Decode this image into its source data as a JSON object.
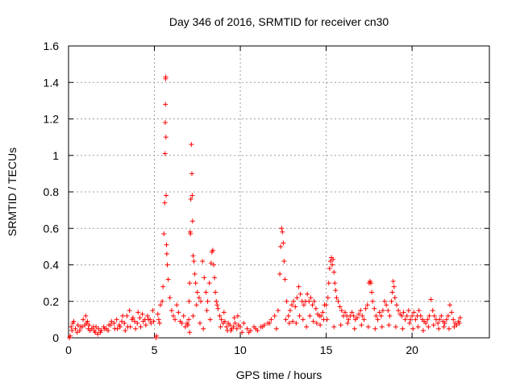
{
  "chart_data": {
    "type": "scatter",
    "title": "Day 346 of 2016, SRMTID for receiver cn30",
    "xlabel": "GPS time / hours",
    "ylabel": "SRMTID / TECUs",
    "xlim": [
      0,
      24.5
    ],
    "ylim": [
      0,
      1.6
    ],
    "xticks": [
      0,
      5,
      10,
      15,
      20
    ],
    "yticks": [
      0,
      0.2,
      0.4,
      0.6,
      0.8,
      1,
      1.2,
      1.4,
      1.6
    ],
    "xtick_labels": [
      "0",
      "5",
      "10",
      "15",
      "20"
    ],
    "ytick_labels": [
      "0",
      "0.2",
      "0.4",
      "0.6",
      "0.8",
      "1",
      "1.2",
      "1.4",
      "1.6"
    ],
    "grid": true,
    "marker": "+",
    "series": [
      {
        "name": "SRMTID",
        "color": "#ff0000",
        "x": [
          0.05,
          0.1,
          5.1,
          5.12,
          0.15,
          0.25,
          0.4,
          0.55,
          0.7,
          0.85,
          1.0,
          1.1,
          1.2,
          1.35,
          1.5,
          1.6,
          1.75,
          1.9,
          2.05,
          2.2,
          2.35,
          2.5,
          2.65,
          2.8,
          2.95,
          3.1,
          3.25,
          3.4,
          3.55,
          3.7,
          3.85,
          4.0,
          4.15,
          4.3,
          4.45,
          4.6,
          4.75,
          4.9,
          5.2,
          5.35,
          5.45,
          0.2,
          0.5,
          0.8,
          1.05,
          1.25,
          1.55,
          1.85,
          2.3,
          2.7,
          3.0,
          3.3,
          3.6,
          3.9,
          4.2,
          4.5,
          4.8,
          5.3,
          0.3,
          0.65,
          0.95,
          1.15,
          1.45,
          1.7,
          2.1,
          2.45,
          2.85,
          3.15,
          3.45,
          3.75,
          4.05,
          4.35,
          4.65,
          4.95,
          5.25,
          5.5,
          5.55,
          5.6,
          5.62,
          5.63,
          5.64,
          5.65,
          5.66,
          5.67,
          5.68,
          5.7,
          5.72,
          5.75,
          5.8,
          5.9,
          6.0,
          6.1,
          6.2,
          6.3,
          6.4,
          6.5,
          6.6,
          6.7,
          6.8,
          6.9,
          6.95,
          7.0,
          7.02,
          7.05,
          7.08,
          7.1,
          7.12,
          7.15,
          7.18,
          7.2,
          7.22,
          7.25,
          7.3,
          7.35,
          7.4,
          7.5,
          7.6,
          7.7,
          7.8,
          7.9,
          8.0,
          8.1,
          8.2,
          8.3,
          8.35,
          8.4,
          8.45,
          8.5,
          8.55,
          8.6,
          8.7,
          8.8,
          8.9,
          9.0,
          9.1,
          9.2,
          9.3,
          9.4,
          9.5,
          9.6,
          9.7,
          9.8,
          9.9,
          7.05,
          7.25,
          7.45,
          7.65,
          7.85,
          8.05,
          8.25,
          8.65,
          8.85,
          9.05,
          9.25,
          9.45,
          9.65,
          9.85,
          10.0,
          10.2,
          10.4,
          10.6,
          10.8,
          11.0,
          11.2,
          11.4,
          11.6,
          11.8,
          12.0,
          12.2,
          12.3,
          12.35,
          12.4,
          12.45,
          12.5,
          12.55,
          12.6,
          12.7,
          12.8,
          12.9,
          13.0,
          13.1,
          13.2,
          13.3,
          13.4,
          13.5,
          13.6,
          13.7,
          13.8,
          13.9,
          14.0,
          14.1,
          14.2,
          14.3,
          14.4,
          14.5,
          14.6,
          14.7,
          14.8,
          14.9,
          10.1,
          10.5,
          10.9,
          11.3,
          11.7,
          12.1,
          12.65,
          12.85,
          13.05,
          13.25,
          13.45,
          13.65,
          13.85,
          14.05,
          14.25,
          14.45,
          14.65,
          14.85,
          15.0,
          15.1,
          15.15,
          15.2,
          15.25,
          15.3,
          15.35,
          15.4,
          15.45,
          15.5,
          15.55,
          15.6,
          15.7,
          15.8,
          15.9,
          16.0,
          16.1,
          16.2,
          16.3,
          16.4,
          16.5,
          16.6,
          16.7,
          16.8,
          16.9,
          17.0,
          17.1,
          17.2,
          17.3,
          17.4,
          17.5,
          17.55,
          17.6,
          17.65,
          17.7,
          17.8,
          17.9,
          18.0,
          18.1,
          18.2,
          18.3,
          18.4,
          18.5,
          18.6,
          18.7,
          18.8,
          18.85,
          18.9,
          18.95,
          19.0,
          19.1,
          19.2,
          19.3,
          19.4,
          19.5,
          19.6,
          19.7,
          19.8,
          19.9,
          15.05,
          15.45,
          15.85,
          16.25,
          16.65,
          17.05,
          17.45,
          17.85,
          18.25,
          18.65,
          19.05,
          19.45,
          19.85,
          20.0,
          20.1,
          20.2,
          20.3,
          20.4,
          20.5,
          20.6,
          20.7,
          20.8,
          20.9,
          21.0,
          21.1,
          21.2,
          21.3,
          21.4,
          21.5,
          21.6,
          21.7,
          21.8,
          21.9,
          22.0,
          22.1,
          22.2,
          22.3,
          22.4,
          22.5,
          22.6,
          22.7,
          22.8,
          20.05,
          20.35,
          20.65,
          20.95,
          21.25,
          21.55,
          21.85,
          22.15,
          22.45,
          22.75
        ],
        "y": [
          0.0,
          0.01,
          0.0,
          0.01,
          0.06,
          0.08,
          0.05,
          0.07,
          0.06,
          0.1,
          0.12,
          0.09,
          0.07,
          0.05,
          0.04,
          0.06,
          0.05,
          0.04,
          0.06,
          0.05,
          0.07,
          0.09,
          0.08,
          0.1,
          0.07,
          0.09,
          0.08,
          0.12,
          0.15,
          0.1,
          0.09,
          0.08,
          0.11,
          0.13,
          0.1,
          0.12,
          0.1,
          0.15,
          0.13,
          0.18,
          0.2,
          0.04,
          0.03,
          0.06,
          0.08,
          0.04,
          0.03,
          0.03,
          0.04,
          0.05,
          0.06,
          0.04,
          0.06,
          0.05,
          0.06,
          0.07,
          0.08,
          0.08,
          0.09,
          0.04,
          0.07,
          0.05,
          0.06,
          0.02,
          0.05,
          0.07,
          0.05,
          0.12,
          0.06,
          0.11,
          0.14,
          0.09,
          0.1,
          0.09,
          0.1,
          0.28,
          0.57,
          0.74,
          1.01,
          1.18,
          1.28,
          1.42,
          1.43,
          1.1,
          0.78,
          0.51,
          0.46,
          0.4,
          0.32,
          0.22,
          0.15,
          0.12,
          0.1,
          0.18,
          0.14,
          0.09,
          0.08,
          0.12,
          0.06,
          0.08,
          0.07,
          0.1,
          0.2,
          0.3,
          0.58,
          0.57,
          0.76,
          1.06,
          0.9,
          0.78,
          0.64,
          0.45,
          0.42,
          0.35,
          0.3,
          0.25,
          0.22,
          0.2,
          0.42,
          0.33,
          0.25,
          0.2,
          0.3,
          0.41,
          0.47,
          0.48,
          0.4,
          0.33,
          0.25,
          0.2,
          0.16,
          0.12,
          0.1,
          0.08,
          0.09,
          0.06,
          0.08,
          0.07,
          0.05,
          0.06,
          0.08,
          0.05,
          0.07,
          0.03,
          0.12,
          0.18,
          0.08,
          0.05,
          0.15,
          0.1,
          0.18,
          0.06,
          0.14,
          0.04,
          0.04,
          0.11,
          0.12,
          0.06,
          0.08,
          0.05,
          0.04,
          0.06,
          0.04,
          0.06,
          0.07,
          0.08,
          0.1,
          0.12,
          0.15,
          0.35,
          0.5,
          0.6,
          0.58,
          0.52,
          0.42,
          0.32,
          0.2,
          0.12,
          0.15,
          0.18,
          0.2,
          0.17,
          0.22,
          0.28,
          0.24,
          0.2,
          0.18,
          0.2,
          0.24,
          0.2,
          0.22,
          0.18,
          0.2,
          0.16,
          0.13,
          0.12,
          0.12,
          0.14,
          0.18,
          0.03,
          0.03,
          0.05,
          0.06,
          0.08,
          0.05,
          0.1,
          0.08,
          0.09,
          0.08,
          0.12,
          0.1,
          0.06,
          0.12,
          0.09,
          0.08,
          0.07,
          0.1,
          0.18,
          0.22,
          0.3,
          0.38,
          0.42,
          0.44,
          0.4,
          0.43,
          0.36,
          0.3,
          0.26,
          0.22,
          0.2,
          0.17,
          0.15,
          0.12,
          0.14,
          0.12,
          0.1,
          0.12,
          0.14,
          0.12,
          0.1,
          0.11,
          0.13,
          0.15,
          0.12,
          0.1,
          0.16,
          0.18,
          0.3,
          0.31,
          0.3,
          0.25,
          0.2,
          0.16,
          0.12,
          0.1,
          0.14,
          0.12,
          0.15,
          0.2,
          0.18,
          0.15,
          0.12,
          0.2,
          0.25,
          0.31,
          0.28,
          0.22,
          0.18,
          0.15,
          0.13,
          0.12,
          0.14,
          0.1,
          0.12,
          0.15,
          0.1,
          0.1,
          0.06,
          0.07,
          0.08,
          0.05,
          0.07,
          0.06,
          0.05,
          0.06,
          0.07,
          0.06,
          0.05,
          0.08,
          0.12,
          0.14,
          0.1,
          0.12,
          0.15,
          0.12,
          0.1,
          0.09,
          0.08,
          0.1,
          0.12,
          0.21,
          0.15,
          0.12,
          0.1,
          0.08,
          0.1,
          0.12,
          0.09,
          0.08,
          0.1,
          0.12,
          0.18,
          0.14,
          0.1,
          0.08,
          0.07,
          0.09,
          0.11,
          0.05,
          0.06,
          0.04,
          0.06,
          0.07,
          0.05,
          0.06,
          0.05,
          0.06,
          0.08
        ]
      }
    ]
  }
}
